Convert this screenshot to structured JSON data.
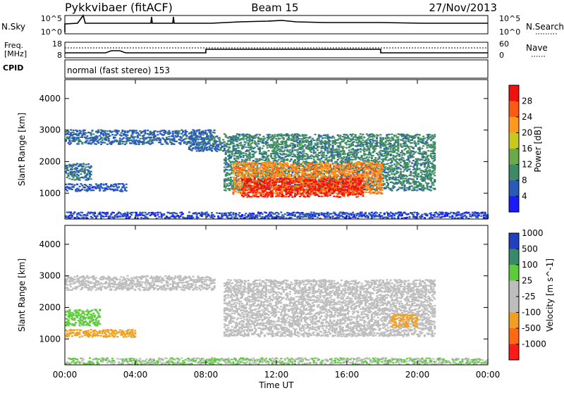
{
  "header": {
    "station": "Pykkvibaer (fitACF)",
    "beam": "Beam 15",
    "date": "27/Nov/2013"
  },
  "nsky_panel": {
    "left_label": "N.Sky",
    "left_ticks": [
      "10^5",
      "10^0"
    ],
    "right_label": "N.Search",
    "right_ticks": [
      "10^5",
      "10^0"
    ]
  },
  "freq_panel": {
    "left_label_1": "Freq.",
    "left_label_2": "[MHz]",
    "left_ticks": [
      "18",
      "8"
    ],
    "right_label": "Nave",
    "right_ticks": [
      "60",
      "0"
    ]
  },
  "cpid_panel": {
    "label": "CPID",
    "text": "normal (fast stereo) 153"
  },
  "chart_data": [
    {
      "type": "heatmap",
      "panel": "power",
      "ylabel": "Slant Range [km]",
      "ylim": [
        180,
        4600
      ],
      "yticks": [
        1000,
        2000,
        3000,
        4000
      ],
      "xlim": [
        0,
        24
      ],
      "colorbar": {
        "label": "Power [dB]",
        "range": [
          0,
          33
        ],
        "tick_labels": [
          "4",
          "8",
          "12",
          "16",
          "20",
          "24",
          "28"
        ],
        "colors": [
          "#1a1aff",
          "#2a5ab8",
          "#3f8a66",
          "#6aaa4c",
          "#c8c81e",
          "#ff9a1e",
          "#ff5a14",
          "#f01010"
        ]
      },
      "regions": [
        {
          "t_start": 0.0,
          "t_end": 8.5,
          "range_center": 2800,
          "range_halfwidth": 230,
          "value": 7
        },
        {
          "t_start": 0.0,
          "t_end": 1.5,
          "range_center": 1700,
          "range_halfwidth": 260,
          "value": 8
        },
        {
          "t_start": 0.0,
          "t_end": 3.5,
          "range_center": 1200,
          "range_halfwidth": 120,
          "value": 6
        },
        {
          "t_start": 7.0,
          "t_end": 9.0,
          "range_center": 2600,
          "range_halfwidth": 250,
          "value": 7
        },
        {
          "t_start": 9.0,
          "t_end": 21.0,
          "range_center": 2000,
          "range_halfwidth": 900,
          "value": 10
        },
        {
          "t_start": 9.5,
          "t_end": 18.0,
          "range_center": 1500,
          "range_halfwidth": 500,
          "value": 24
        },
        {
          "t_start": 10.0,
          "t_end": 17.0,
          "range_center": 1200,
          "range_halfwidth": 300,
          "value": 30
        },
        {
          "t_start": 0.0,
          "t_end": 24.0,
          "range_center": 300,
          "range_halfwidth": 120,
          "value": 5
        }
      ]
    },
    {
      "type": "heatmap",
      "panel": "velocity",
      "xlabel": "Time UT",
      "ylabel": "Slant Range [km]",
      "ylim": [
        180,
        4600
      ],
      "yticks": [
        1000,
        2000,
        3000,
        4000
      ],
      "xlim": [
        0,
        24
      ],
      "xtick_labels": [
        "00:00",
        "04:00",
        "08:00",
        "12:00",
        "16:00",
        "20:00",
        "00:00"
      ],
      "colorbar": {
        "label": "Velocity [m s^-1]",
        "tick_labels": [
          "1000",
          "500",
          "100",
          "25",
          "-25",
          "-100",
          "-500",
          "-1000"
        ],
        "colors": [
          "#2040c0",
          "#3a8a6a",
          "#5ccc3c",
          "#bdbdbd",
          "#bdbdbd",
          "#f0a020",
          "#ff6a10",
          "#ff1a1a"
        ]
      },
      "regions": [
        {
          "t_start": 0.0,
          "t_end": 8.5,
          "range_center": 2800,
          "range_halfwidth": 230,
          "value": 0
        },
        {
          "t_start": 0.0,
          "t_end": 2.0,
          "range_center": 1700,
          "range_halfwidth": 260,
          "value": 150
        },
        {
          "t_start": 0.0,
          "t_end": 4.0,
          "range_center": 1200,
          "range_halfwidth": 120,
          "value": -150
        },
        {
          "t_start": 9.0,
          "t_end": 21.0,
          "range_center": 2000,
          "range_halfwidth": 900,
          "value": 0
        },
        {
          "t_start": 18.5,
          "t_end": 20.0,
          "range_center": 1600,
          "range_halfwidth": 200,
          "value": -200
        },
        {
          "t_start": 0.0,
          "t_end": 24.0,
          "range_center": 300,
          "range_halfwidth": 120,
          "value": 60
        }
      ]
    }
  ]
}
